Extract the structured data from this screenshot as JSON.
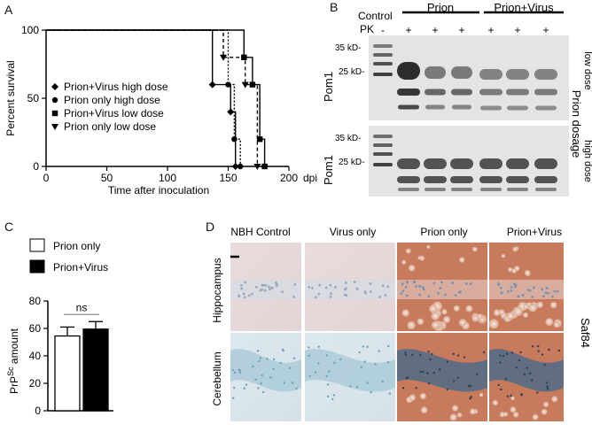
{
  "panels": {
    "A": {
      "letter": "A"
    },
    "B": {
      "letter": "B"
    },
    "C": {
      "letter": "C"
    },
    "D": {
      "letter": "D"
    }
  },
  "chart_data": [
    {
      "panel": "A",
      "type": "line",
      "subtype": "step-survival",
      "xlabel": "Time after inoculation",
      "xunit": "dpi",
      "ylabel": "Percent survival",
      "xlim": [
        0,
        200
      ],
      "ylim": [
        0,
        100
      ],
      "xticks": [
        0,
        50,
        100,
        150,
        200
      ],
      "yticks": [
        0,
        50,
        100
      ],
      "legend_position": "left-center",
      "series": [
        {
          "name": "Prion+Virus high dose",
          "marker": "diamond",
          "dash": "solid",
          "points": [
            [
              0,
              100
            ],
            [
              137,
              100
            ],
            [
              137,
              60
            ],
            [
              152,
              60
            ],
            [
              152,
              40
            ],
            [
              156,
              40
            ],
            [
              156,
              0
            ]
          ]
        },
        {
          "name": "Prion only high dose",
          "marker": "circle",
          "dash": "dotted",
          "points": [
            [
              0,
              100
            ],
            [
              150,
              100
            ],
            [
              150,
              60
            ],
            [
              155,
              60
            ],
            [
              155,
              20
            ],
            [
              160,
              20
            ],
            [
              160,
              0
            ]
          ]
        },
        {
          "name": "Prion+Virus low dose",
          "marker": "square",
          "dash": "solid",
          "points": [
            [
              0,
              100
            ],
            [
              163,
              100
            ],
            [
              163,
              80
            ],
            [
              170,
              80
            ],
            [
              170,
              60
            ],
            [
              176,
              60
            ],
            [
              176,
              20
            ],
            [
              180,
              20
            ],
            [
              180,
              0
            ]
          ]
        },
        {
          "name": "Prion only low dose",
          "marker": "triangle-down",
          "dash": "dashed",
          "points": [
            [
              0,
              100
            ],
            [
              146,
              100
            ],
            [
              146,
              80
            ],
            [
              164,
              80
            ],
            [
              164,
              60
            ],
            [
              174,
              60
            ],
            [
              174,
              0
            ]
          ]
        }
      ]
    },
    {
      "panel": "C",
      "type": "bar",
      "ylabel_main": "PrP",
      "ylabel_sup": "Sc",
      "ylabel_rest": " amount",
      "categories": [
        "Prion only",
        "Prion+Virus"
      ],
      "values": [
        54.5,
        59.5
      ],
      "errors": [
        6.5,
        5.5
      ],
      "ylim": [
        0,
        80
      ],
      "yticks": [
        0,
        20,
        40,
        60,
        80
      ],
      "fills": [
        "#ffffff",
        "#000000"
      ],
      "significance": "ns",
      "legend": [
        {
          "label": "Prion only",
          "fill": "#ffffff"
        },
        {
          "label": "Prion+Virus",
          "fill": "#000000"
        }
      ]
    }
  ],
  "blot": {
    "header_control": "Control",
    "header_prion": "Prion",
    "header_prion_virus": "Prion+Virus",
    "pk_label": "PK",
    "pk_marks": [
      "-",
      "+",
      "+",
      "+",
      "+",
      "+",
      "+"
    ],
    "antibody_top": "Pom1",
    "antibody_bottom": "Pom1",
    "marker_35": "35 kD-",
    "marker_25": "25 kD-",
    "side_title": "Prion dosage",
    "side_low": "low dose",
    "side_high": "high dose"
  },
  "histology": {
    "columns": [
      "NBH Control",
      "Virus only",
      "Prion only",
      "Prion+Virus"
    ],
    "rows": [
      "Hippocampus",
      "Cerebellum"
    ],
    "stain": "Saf84"
  },
  "colors": {
    "prp_stain": "#c8643f",
    "counterstain": "#8fb6c8",
    "blot_band": "#222222",
    "blot_bg": "#e4e4e4"
  }
}
